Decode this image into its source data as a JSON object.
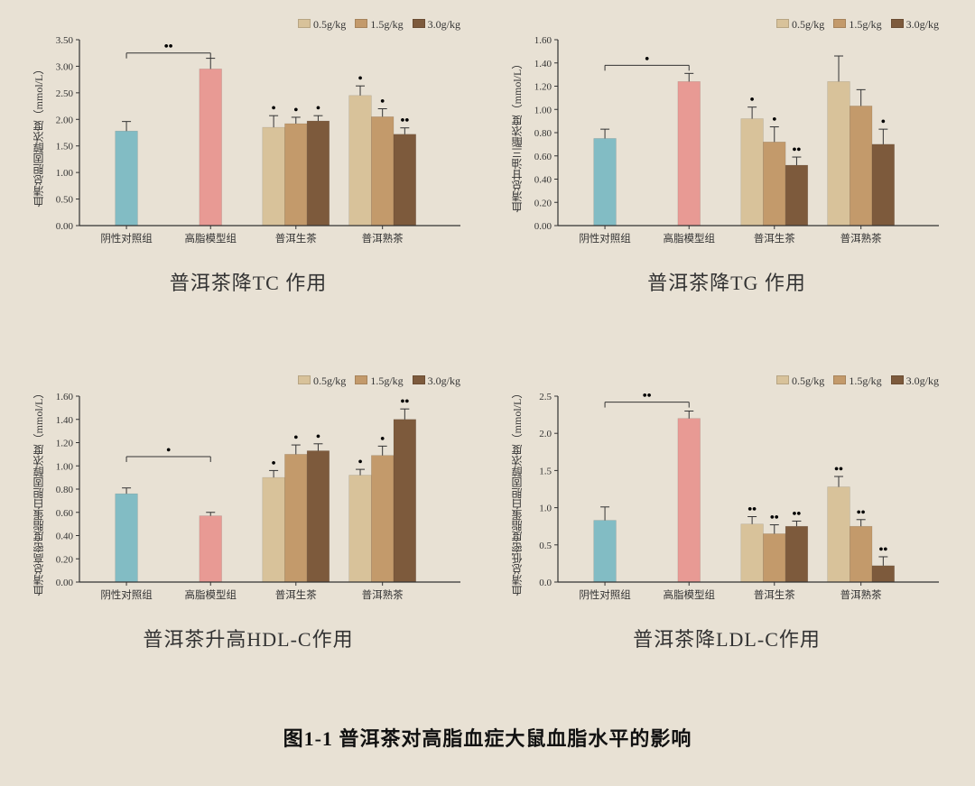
{
  "background_color": "#e8e1d4",
  "figure_caption": "图1-1  普洱茶对高脂血症大鼠血脂水平的影响",
  "legend_labels": [
    "0.5g/kg",
    "1.5g/kg",
    "3.0g/kg"
  ],
  "dose_colors": [
    "#d8c29a",
    "#c39a6b",
    "#7d5a3c"
  ],
  "control_color": "#82bcc4",
  "model_color": "#e89a94",
  "axis_color": "#333333",
  "tick_fontsize": 11,
  "label_fontsize": 12,
  "subtitle_fontsize": 22,
  "bar_width": 0.55,
  "group_gap": 1.2,
  "error_cap": 5,
  "panels": [
    {
      "key": "tc",
      "title": "普洱茶降TC 作用",
      "ylabel": "血清总胆固醇浓度（mmol/L）",
      "ylim": [
        0,
        3.5
      ],
      "ytick_step": 0.5,
      "decimals": 2,
      "categories": [
        "阴性对照组",
        "高脂模型组",
        "普洱生茶",
        "普洱熟茶"
      ],
      "groups": [
        {
          "type": "single",
          "bars": [
            {
              "value": 1.78,
              "err": 0.18,
              "color": "#82bcc4",
              "sig": ""
            }
          ]
        },
        {
          "type": "single",
          "bars": [
            {
              "value": 2.95,
              "err": 0.2,
              "color": "#e89a94",
              "sig": ""
            }
          ]
        },
        {
          "type": "dose",
          "bars": [
            {
              "value": 1.85,
              "err": 0.22,
              "color": "#d8c29a",
              "sig": "*"
            },
            {
              "value": 1.92,
              "err": 0.12,
              "color": "#c39a6b",
              "sig": "*"
            },
            {
              "value": 1.97,
              "err": 0.1,
              "color": "#7d5a3c",
              "sig": "*"
            }
          ]
        },
        {
          "type": "dose",
          "bars": [
            {
              "value": 2.45,
              "err": 0.18,
              "color": "#d8c29a",
              "sig": "*"
            },
            {
              "value": 2.05,
              "err": 0.15,
              "color": "#c39a6b",
              "sig": "*"
            },
            {
              "value": 1.72,
              "err": 0.12,
              "color": "#7d5a3c",
              "sig": "**"
            }
          ]
        }
      ],
      "compare_bar": {
        "from_group": 0,
        "to_group": 1,
        "sig": "**",
        "y": 3.25
      }
    },
    {
      "key": "tg",
      "title": "普洱茶降TG 作用",
      "ylabel": "血清总甘油三酯浓度（mmol/L）",
      "ylim": [
        0,
        1.6
      ],
      "ytick_step": 0.2,
      "decimals": 2,
      "categories": [
        "阴性对照组",
        "高脂模型组",
        "普洱生茶",
        "普洱熟茶"
      ],
      "groups": [
        {
          "type": "single",
          "bars": [
            {
              "value": 0.75,
              "err": 0.08,
              "color": "#82bcc4",
              "sig": ""
            }
          ]
        },
        {
          "type": "single",
          "bars": [
            {
              "value": 1.24,
              "err": 0.07,
              "color": "#e89a94",
              "sig": ""
            }
          ]
        },
        {
          "type": "dose",
          "bars": [
            {
              "value": 0.92,
              "err": 0.1,
              "color": "#d8c29a",
              "sig": "*"
            },
            {
              "value": 0.72,
              "err": 0.13,
              "color": "#c39a6b",
              "sig": "*"
            },
            {
              "value": 0.52,
              "err": 0.07,
              "color": "#7d5a3c",
              "sig": "**"
            }
          ]
        },
        {
          "type": "dose",
          "bars": [
            {
              "value": 1.24,
              "err": 0.22,
              "color": "#d8c29a",
              "sig": ""
            },
            {
              "value": 1.03,
              "err": 0.14,
              "color": "#c39a6b",
              "sig": ""
            },
            {
              "value": 0.7,
              "err": 0.13,
              "color": "#7d5a3c",
              "sig": "*"
            }
          ]
        }
      ],
      "compare_bar": {
        "from_group": 0,
        "to_group": 1,
        "sig": "*",
        "y": 1.38
      }
    },
    {
      "key": "hdl",
      "title": "普洱茶升高HDL-C作用",
      "ylabel": "血清总高密度脂蛋白胆固醇浓度（mmol/L）",
      "ylim": [
        0,
        1.6
      ],
      "ytick_step": 0.2,
      "decimals": 2,
      "categories": [
        "阴性对照组",
        "高脂模型组",
        "普洱生茶",
        "普洱熟茶"
      ],
      "groups": [
        {
          "type": "single",
          "bars": [
            {
              "value": 0.76,
              "err": 0.05,
              "color": "#82bcc4",
              "sig": ""
            }
          ]
        },
        {
          "type": "single",
          "bars": [
            {
              "value": 0.57,
              "err": 0.03,
              "color": "#e89a94",
              "sig": ""
            }
          ]
        },
        {
          "type": "dose",
          "bars": [
            {
              "value": 0.9,
              "err": 0.06,
              "color": "#d8c29a",
              "sig": "*"
            },
            {
              "value": 1.1,
              "err": 0.08,
              "color": "#c39a6b",
              "sig": "*"
            },
            {
              "value": 1.13,
              "err": 0.06,
              "color": "#7d5a3c",
              "sig": "*"
            }
          ]
        },
        {
          "type": "dose",
          "bars": [
            {
              "value": 0.92,
              "err": 0.05,
              "color": "#d8c29a",
              "sig": "*"
            },
            {
              "value": 1.09,
              "err": 0.08,
              "color": "#c39a6b",
              "sig": "*"
            },
            {
              "value": 1.4,
              "err": 0.09,
              "color": "#7d5a3c",
              "sig": "**"
            }
          ]
        }
      ],
      "compare_bar": {
        "from_group": 0,
        "to_group": 1,
        "sig": "*",
        "y": 1.08
      }
    },
    {
      "key": "ldl",
      "title": "普洱茶降LDL-C作用",
      "ylabel": "血清总低密度脂蛋白胆固醇浓度（mmol/L）",
      "ylim": [
        0,
        2.5
      ],
      "ytick_step": 0.5,
      "decimals": 1,
      "categories": [
        "阴性对照组",
        "高脂模型组",
        "普洱生茶",
        "普洱熟茶"
      ],
      "groups": [
        {
          "type": "single",
          "bars": [
            {
              "value": 0.83,
              "err": 0.18,
              "color": "#82bcc4",
              "sig": ""
            }
          ]
        },
        {
          "type": "single",
          "bars": [
            {
              "value": 2.2,
              "err": 0.1,
              "color": "#e89a94",
              "sig": ""
            }
          ]
        },
        {
          "type": "dose",
          "bars": [
            {
              "value": 0.78,
              "err": 0.1,
              "color": "#d8c29a",
              "sig": "**"
            },
            {
              "value": 0.65,
              "err": 0.12,
              "color": "#c39a6b",
              "sig": "**"
            },
            {
              "value": 0.75,
              "err": 0.07,
              "color": "#7d5a3c",
              "sig": "**"
            }
          ]
        },
        {
          "type": "dose",
          "bars": [
            {
              "value": 1.28,
              "err": 0.14,
              "color": "#d8c29a",
              "sig": "**"
            },
            {
              "value": 0.75,
              "err": 0.09,
              "color": "#c39a6b",
              "sig": "**"
            },
            {
              "value": 0.22,
              "err": 0.12,
              "color": "#7d5a3c",
              "sig": "**"
            }
          ]
        }
      ],
      "compare_bar": {
        "from_group": 0,
        "to_group": 1,
        "sig": "**",
        "y": 2.42
      }
    }
  ]
}
